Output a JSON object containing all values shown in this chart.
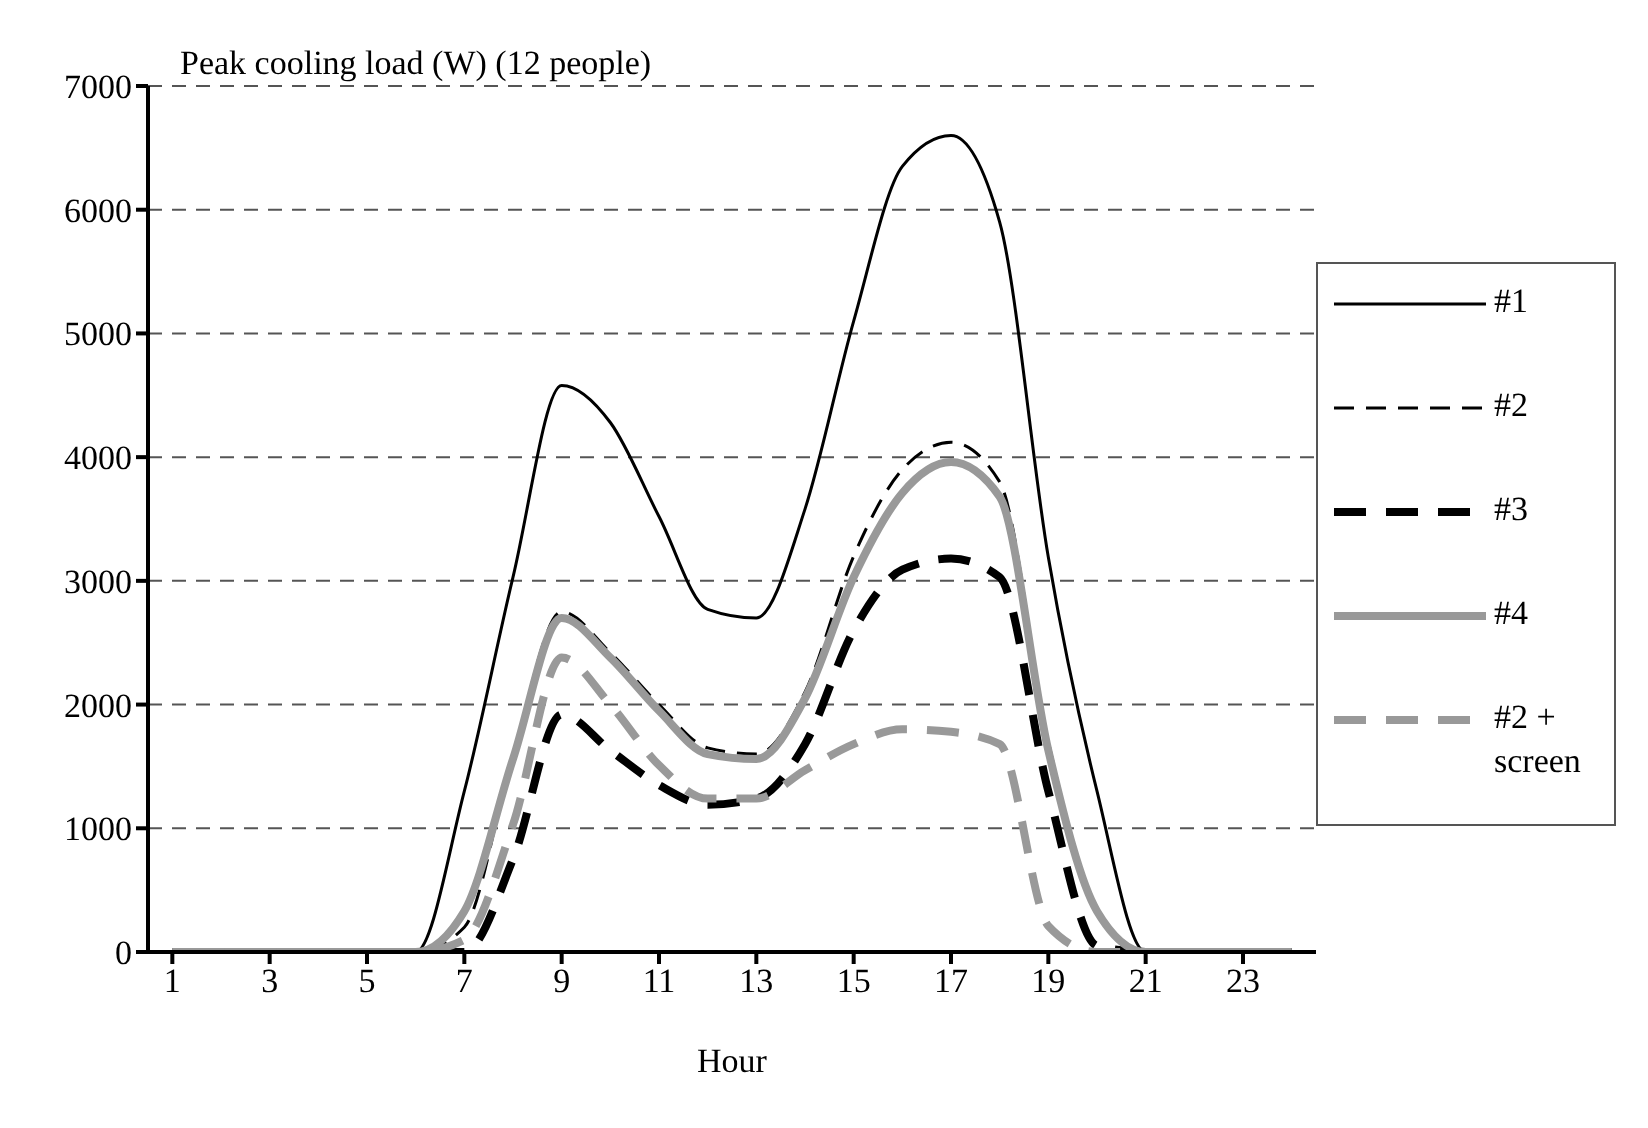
{
  "chart_data": {
    "type": "line",
    "ylabel": "Peak cooling load (W) (12 people)",
    "xlabel": "Hour",
    "x": [
      1,
      2,
      3,
      4,
      5,
      6,
      7,
      8,
      9,
      10,
      11,
      12,
      13,
      14,
      15,
      16,
      17,
      18,
      19,
      20,
      21,
      22,
      23,
      24
    ],
    "xlim": [
      0.5,
      24.5
    ],
    "xticks": [
      1,
      3,
      5,
      7,
      9,
      11,
      13,
      15,
      17,
      19,
      21,
      23
    ],
    "series": [
      {
        "name": "#1",
        "color": "#000000",
        "line_style": "solid",
        "values": [
          0,
          0,
          0,
          0,
          0,
          0,
          1300,
          3030,
          4580,
          4280,
          3520,
          2770,
          2700,
          3580,
          5100,
          6350,
          6600,
          5900,
          3190,
          1300,
          0,
          0,
          0,
          0
        ]
      },
      {
        "name": "#2",
        "color": "#000000",
        "line_style": "dashed",
        "values": [
          0,
          0,
          0,
          0,
          0,
          0,
          200,
          1600,
          2750,
          2420,
          2000,
          1650,
          1600,
          2100,
          3200,
          3900,
          4120,
          3800,
          1700,
          350,
          0,
          0,
          0,
          0
        ]
      },
      {
        "name": "#3",
        "color": "#000000",
        "line_style": "dashed",
        "values": [
          0,
          0,
          0,
          0,
          0,
          0,
          0,
          750,
          1920,
          1630,
          1350,
          1190,
          1240,
          1680,
          2600,
          3090,
          3180,
          3030,
          1300,
          50,
          0,
          0,
          0,
          0
        ]
      },
      {
        "name": "#4",
        "color": "#999999",
        "line_style": "solid",
        "values": [
          0,
          0,
          0,
          0,
          0,
          0,
          330,
          1560,
          2700,
          2380,
          1950,
          1600,
          1560,
          2050,
          3030,
          3710,
          3960,
          3680,
          1630,
          330,
          0,
          0,
          0,
          0
        ]
      },
      {
        "name": "#2 + screen",
        "color": "#999999",
        "line_style": "dashed",
        "values": [
          0,
          0,
          0,
          0,
          0,
          0,
          100,
          1030,
          2380,
          2000,
          1510,
          1240,
          1240,
          1470,
          1680,
          1800,
          1780,
          1680,
          210,
          0,
          0,
          0,
          0,
          0
        ]
      }
    ],
    "ylim": [
      0,
      7000
    ],
    "yticks": [
      0,
      1000,
      2000,
      3000,
      4000,
      5000,
      6000,
      7000
    ],
    "grid": "y",
    "legend": "right",
    "marker": "none"
  }
}
